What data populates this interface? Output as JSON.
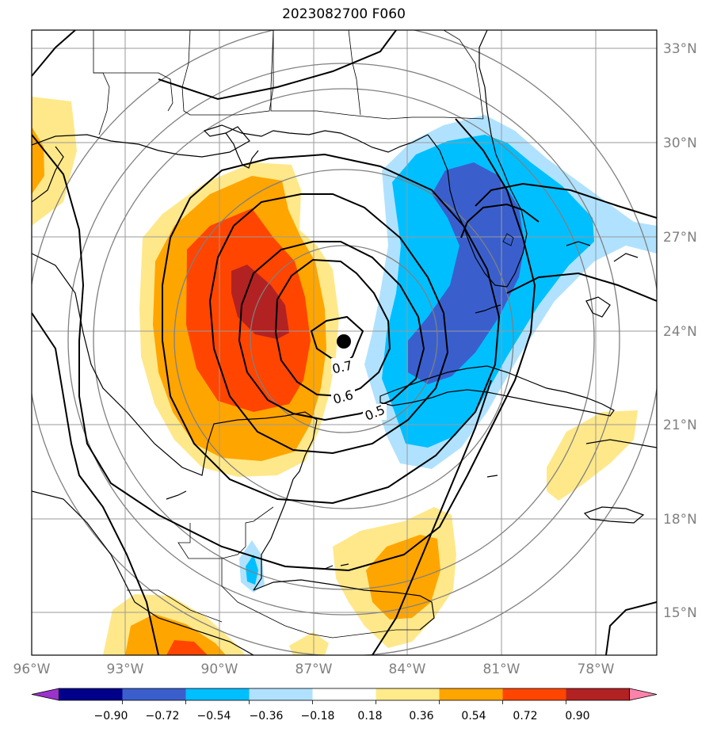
{
  "title": "2023082700 F060",
  "map": {
    "lon_labels": [
      "96°W",
      "93°W",
      "90°W",
      "87°W",
      "84°W",
      "81°W",
      "78°W"
    ],
    "lat_labels": [
      "33°N",
      "30°N",
      "27°N",
      "24°N",
      "21°N",
      "18°N",
      "15°N"
    ],
    "contour_labels": [
      "0.7",
      "0.6",
      "0.5"
    ],
    "storm_center": "storm-center-marker"
  },
  "colorbar": {
    "ticks": [
      "−0.90",
      "−0.72",
      "−0.54",
      "−0.36",
      "−0.18",
      "0.18",
      "0.36",
      "0.54",
      "0.72",
      "0.90"
    ],
    "colors": [
      "#9a32cd",
      "#00008b",
      "#3a5fcd",
      "#00bfff",
      "#b0e2ff",
      "#ffffff",
      "#ffeb8a",
      "#ffa500",
      "#ff4500",
      "#b22222",
      "#ff82ab"
    ]
  },
  "palette": {
    "yellow": "#ffe88a",
    "orange": "#ffa500",
    "orangered": "#ff4500",
    "darkred": "#b22222",
    "lightblue": "#b0e2ff",
    "cyan": "#00bfff",
    "royalblue": "#3a5fcd"
  }
}
